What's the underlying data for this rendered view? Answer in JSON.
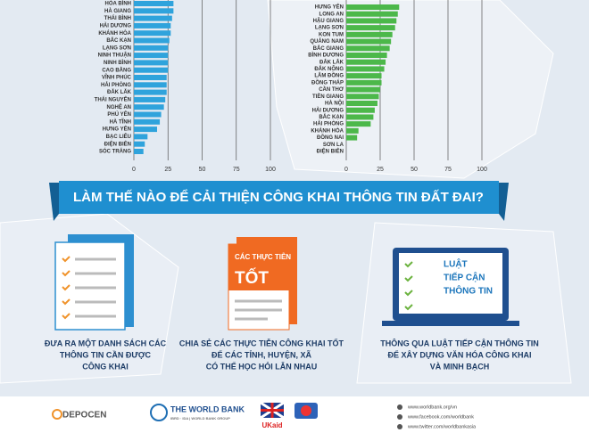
{
  "chart_data": [
    {
      "type": "bar",
      "orientation": "horizontal",
      "color": "#2fa3dc",
      "grid": true,
      "categories": [
        "HÒA BÌNH",
        "HÀ GIANG",
        "THÁI BÌNH",
        "HẢI DƯƠNG",
        "KHÁNH HÒA",
        "BẮC KẠN",
        "LẠNG SƠN",
        "NINH THUẬN",
        "NINH BÌNH",
        "CAO BẰNG",
        "VĨNH PHÚC",
        "HẢI PHÒNG",
        "ĐẮK LẮK",
        "THÁI NGUYÊN",
        "NGHỆ AN",
        "PHÚ YÊN",
        "HÀ TĨNH",
        "HƯNG YÊN",
        "BẠC LIÊU",
        "ĐIỆN BIÊN",
        "SÓC TRĂNG"
      ],
      "values": [
        29,
        29,
        28,
        27,
        27,
        26,
        25,
        25,
        25,
        25,
        24,
        24,
        24,
        23,
        22,
        20,
        19,
        17,
        10,
        8,
        7
      ],
      "xlim": [
        0,
        100
      ],
      "xticks": [
        0,
        25,
        50,
        75,
        100
      ]
    },
    {
      "type": "bar",
      "orientation": "horizontal",
      "color": "#4cb84a",
      "grid": true,
      "categories": [
        "HƯNG YÊN",
        "LONG AN",
        "HẬU GIANG",
        "LẠNG SƠN",
        "KON TUM",
        "QUẢNG NAM",
        "BẮC GIANG",
        "BÌNH DƯƠNG",
        "ĐẮK LẮK",
        "ĐẮK NÔNG",
        "LÂM ĐỒNG",
        "ĐỒNG THÁP",
        "CẦN THƠ",
        "TIỀN GIANG",
        "HÀ NỘI",
        "HẢI DƯƠNG",
        "BẮC KẠN",
        "HẢI PHÒNG",
        "KHÁNH HÒA",
        "ĐỒNG NAI",
        "SƠN LA",
        "ĐIỆN BIÊN"
      ],
      "values": [
        39,
        38,
        37,
        36,
        34,
        33,
        32,
        30,
        29,
        28,
        26,
        26,
        25,
        24,
        23,
        21,
        20,
        18,
        9,
        8,
        0,
        0
      ],
      "xlim": [
        0,
        100
      ],
      "xticks": [
        0,
        25,
        50,
        75,
        100
      ]
    }
  ],
  "banner": {
    "title": "LÀM THẾ NÀO ĐỂ CẢI THIỆN CÔNG KHAI THÔNG TIN ĐẤT ĐAI?"
  },
  "tips": [
    {
      "caption": [
        "ĐƯA RA MỘT DANH SÁCH CÁC",
        "THÔNG TIN CẦN ĐƯỢC",
        "CÔNG KHAI"
      ]
    },
    {
      "icon_lines": [
        "CÁC THỰC TIỄN",
        "TỐT"
      ],
      "caption": [
        "CHIA SẺ CÁC THỰC TIỄN CÔNG KHAI TỐT",
        "ĐỂ CÁC TỈNH, HUYỆN, XÃ",
        "CÓ THỂ HỌC HỎI LẪN NHAU"
      ]
    },
    {
      "icon_lines": [
        "LUẬT",
        "TIẾP CẬN",
        "THÔNG TIN"
      ],
      "caption": [
        "THÔNG QUA LUẬT TIẾP CẬN THÔNG TIN",
        "ĐỂ XÂY DỰNG VĂN HÓA CÔNG KHAI",
        "VÀ MINH BẠCH"
      ]
    }
  ],
  "footer": {
    "logos": [
      "DEPOCEN",
      "THE WORLD BANK",
      "IBRD · IDA | WORLD BANK GROUP",
      "UKaid"
    ],
    "links": [
      "www.worldbank.org/vn",
      "www.facebook.com/worldbank",
      "www.twitter.com/worldbankasia"
    ]
  }
}
